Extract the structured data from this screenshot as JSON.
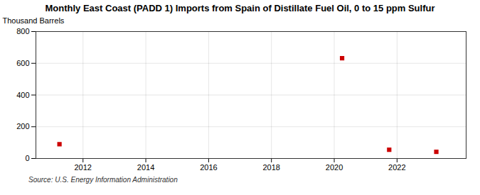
{
  "chart_data": {
    "type": "scatter",
    "title": "Monthly East Coast (PADD 1) Imports from Spain of Distillate Fuel Oil, 0 to 15 ppm Sulfur",
    "ylabel": "Thousand Barrels",
    "source": "Source: U.S. Energy Information Administration",
    "x": [
      2011.25,
      2020.25,
      2021.75,
      2023.25
    ],
    "values": [
      90,
      632,
      55,
      42
    ],
    "color": "#cc0000",
    "marker": "square",
    "xlim": [
      2010.5,
      2024.2
    ],
    "xticks": [
      2012,
      2014,
      2016,
      2018,
      2020,
      2022
    ],
    "ylim": [
      0,
      800
    ],
    "yticks": [
      0,
      200,
      400,
      600,
      800
    ],
    "grid": true
  }
}
